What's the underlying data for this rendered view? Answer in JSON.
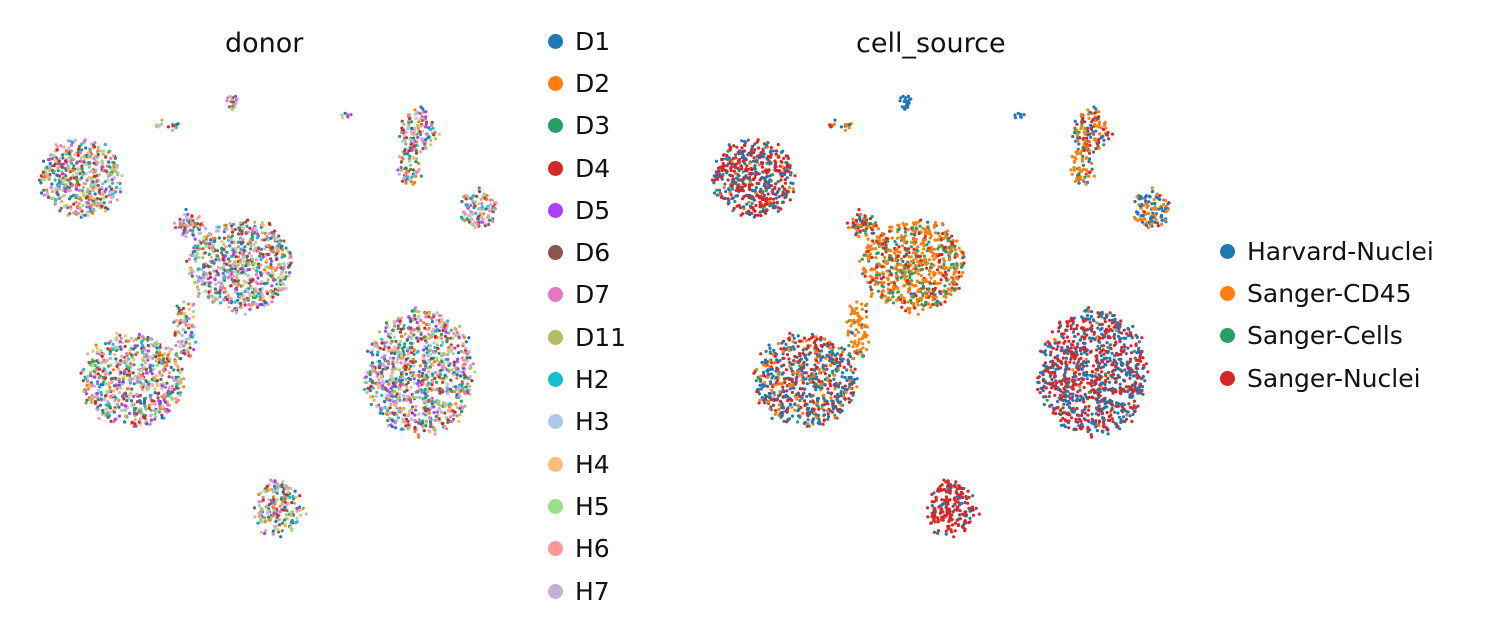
{
  "chart_data": [
    {
      "type": "scatter",
      "title": "donor",
      "legend_placement": "right",
      "grid": false,
      "axes_visible": false,
      "series": [
        {
          "name": "D1",
          "color": "#1f77b4"
        },
        {
          "name": "D2",
          "color": "#ff7f0e"
        },
        {
          "name": "D3",
          "color": "#279e68"
        },
        {
          "name": "D4",
          "color": "#d62728"
        },
        {
          "name": "D5",
          "color": "#aa40fc"
        },
        {
          "name": "D6",
          "color": "#8c564b"
        },
        {
          "name": "D7",
          "color": "#e377c2"
        },
        {
          "name": "D11",
          "color": "#b5bd61"
        },
        {
          "name": "H2",
          "color": "#17becf"
        },
        {
          "name": "H3",
          "color": "#aec7e8"
        },
        {
          "name": "H4",
          "color": "#ffbb78"
        },
        {
          "name": "H5",
          "color": "#98df8a"
        },
        {
          "name": "H6",
          "color": "#ff9896"
        },
        {
          "name": "H7",
          "color": "#c5b0d5"
        }
      ]
    },
    {
      "type": "scatter",
      "title": "cell_source",
      "legend_placement": "right",
      "grid": false,
      "axes_visible": false,
      "series": [
        {
          "name": "Harvard-Nuclei",
          "color": "#1f77b4"
        },
        {
          "name": "Sanger-CD45",
          "color": "#ff7f0e"
        },
        {
          "name": "Sanger-Cells",
          "color": "#279e68"
        },
        {
          "name": "Sanger-Nuclei",
          "color": "#d62728"
        }
      ]
    }
  ]
}
